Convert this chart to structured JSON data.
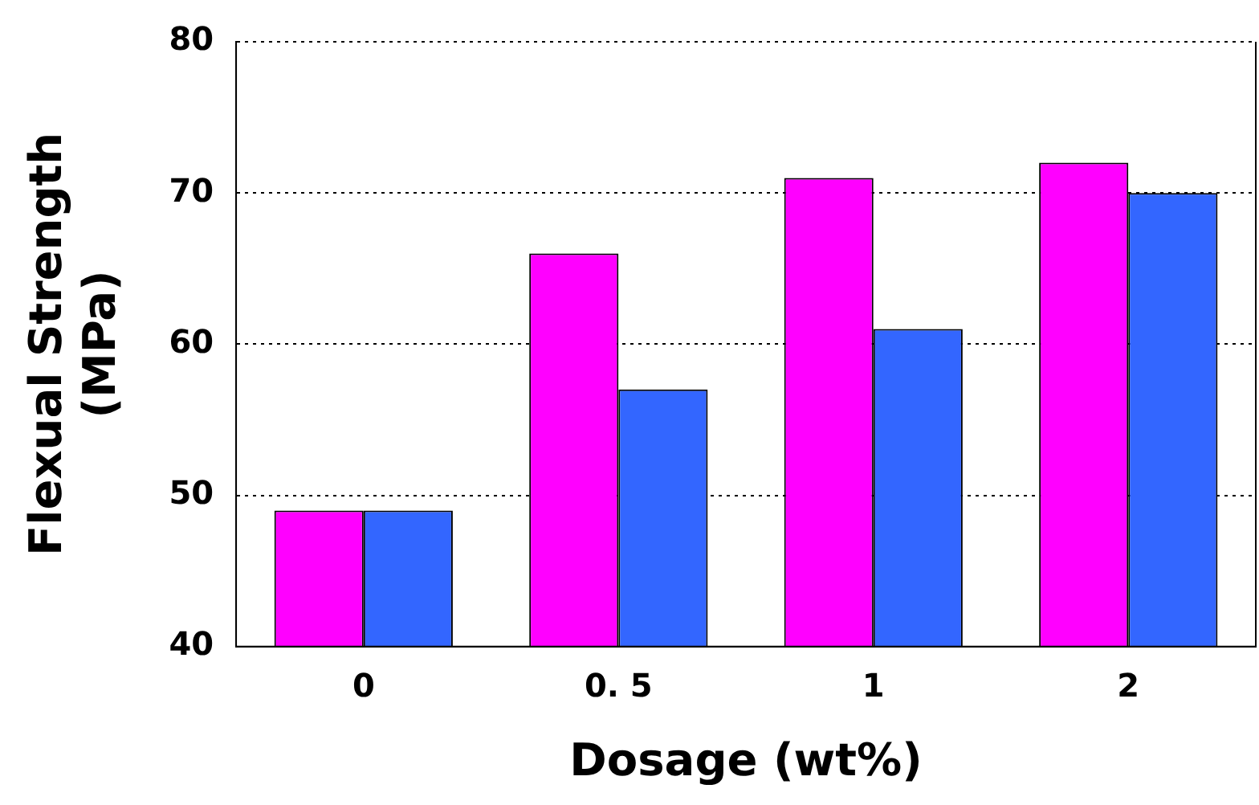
{
  "chart_data": {
    "type": "bar",
    "xlabel": "Dosage (wt%)",
    "ylabel": "Flexual Strength\n(MPa)",
    "categories": [
      "0",
      "0. 5",
      "1",
      "2"
    ],
    "series": [
      {
        "color": "#ff00ff",
        "values": [
          49,
          66,
          71,
          72
        ]
      },
      {
        "color": "#3366ff",
        "values": [
          49,
          57,
          61,
          70
        ]
      }
    ],
    "ylim": [
      40,
      80
    ],
    "yticks": [
      40,
      50,
      60,
      70,
      80
    ],
    "grid": "y",
    "legend": false
  }
}
